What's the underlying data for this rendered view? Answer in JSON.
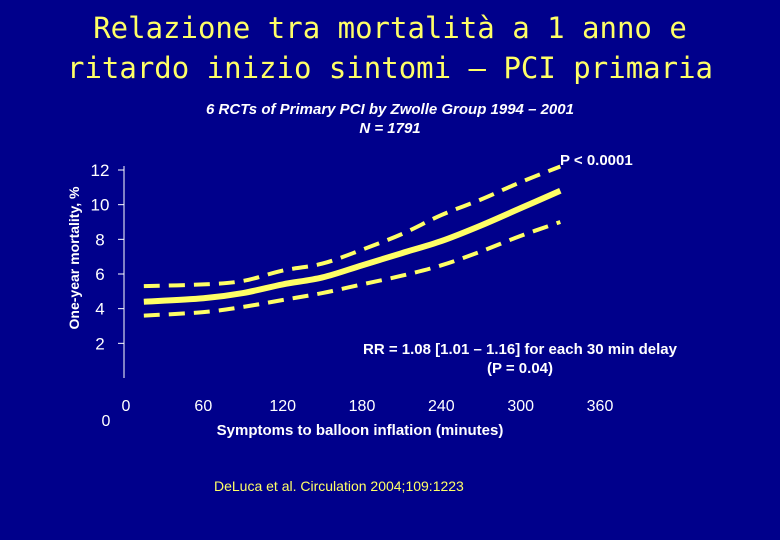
{
  "slide": {
    "title_line1": "Relazione tra mortalità a 1 anno e",
    "title_line2": "ritardo inizio sintomi – PCI primaria",
    "subtitle_line1": "6 RCTs of Primary PCI by Zwolle Group 1994 – 2001",
    "subtitle_line2": "N = 1791",
    "citation": "DeLuca et al. Circulation 2004;109:1223"
  },
  "chart_data": {
    "type": "line",
    "title": "",
    "xlabel": "Symptoms to balloon inflation (minutes)",
    "ylabel": "One-year mortality, %",
    "x_ticks": [
      0,
      60,
      120,
      180,
      240,
      300,
      360
    ],
    "y_ticks": [
      0,
      2,
      4,
      6,
      8,
      10,
      12
    ],
    "xlim": [
      0,
      360
    ],
    "ylim": [
      0,
      12
    ],
    "grid": false,
    "legend": "none",
    "series": [
      {
        "role": "estimate",
        "style": "solid",
        "color": "#FFFF66",
        "x": [
          15,
          60,
          90,
          120,
          150,
          180,
          210,
          240,
          270,
          300,
          330
        ],
        "y": [
          4.4,
          4.6,
          4.9,
          5.4,
          5.8,
          6.5,
          7.2,
          7.9,
          8.8,
          9.8,
          10.8
        ]
      },
      {
        "role": "upper 95% CI",
        "style": "dashed",
        "color": "#FFFF66",
        "x": [
          15,
          60,
          90,
          120,
          150,
          180,
          210,
          240,
          270,
          300,
          330
        ],
        "y": [
          5.3,
          5.4,
          5.6,
          6.2,
          6.6,
          7.4,
          8.3,
          9.4,
          10.3,
          11.3,
          12.2
        ]
      },
      {
        "role": "lower 95% CI",
        "style": "dashed",
        "color": "#FFFF66",
        "x": [
          15,
          60,
          90,
          120,
          150,
          180,
          210,
          240,
          270,
          300,
          330
        ],
        "y": [
          3.6,
          3.8,
          4.1,
          4.5,
          4.9,
          5.4,
          5.9,
          6.5,
          7.3,
          8.2,
          9.0
        ]
      }
    ],
    "annotations": {
      "p_value": "P < 0.0001",
      "rr_line1": "RR = 1.08 [1.01 – 1.16] for each 30 min delay",
      "rr_line2": "(P = 0.04)"
    }
  }
}
